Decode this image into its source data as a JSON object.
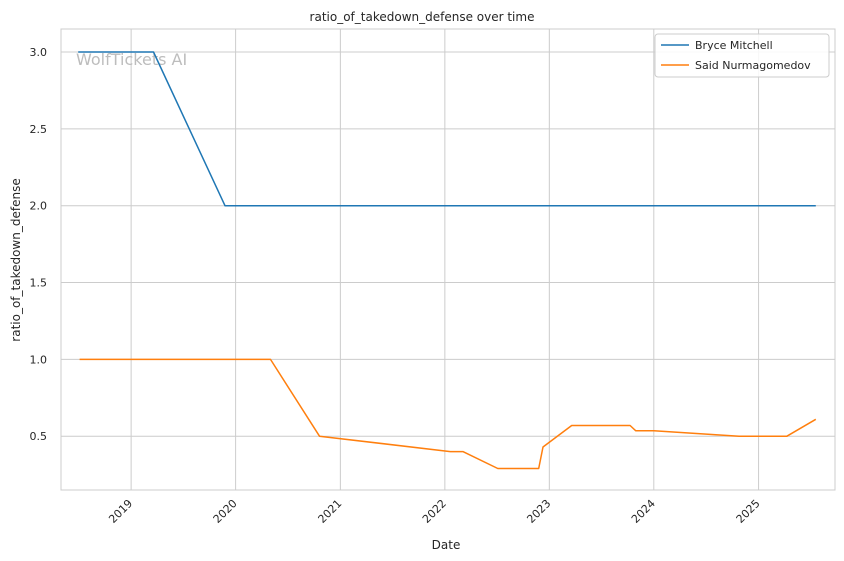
{
  "chart_data": {
    "type": "line",
    "title": "ratio_of_takedown_defense over time",
    "xlabel": "Date",
    "ylabel": "ratio_of_takedown_defense",
    "x_ticks": [
      "2019",
      "2020",
      "2021",
      "2022",
      "2023",
      "2024",
      "2025"
    ],
    "x_tick_dates": [
      "2019-01-01",
      "2020-01-01",
      "2021-01-01",
      "2022-01-01",
      "2023-01-01",
      "2024-01-01",
      "2025-01-01"
    ],
    "y_ticks": [
      "0.5",
      "1.0",
      "1.5",
      "2.0",
      "2.5",
      "3.0"
    ],
    "xlim": [
      "2018-05-01",
      "2025-09-25"
    ],
    "ylim": [
      0.15,
      3.15
    ],
    "grid": true,
    "legend_position": "top-right",
    "watermark": "WolfTickets AI",
    "colors": {
      "bryce": "#1f77b4",
      "said": "#ff7f0e",
      "grid": "#cccccc",
      "frame": "#cccccc",
      "watermark": "#bdbdbd"
    },
    "series": [
      {
        "name": "Bryce Mitchell",
        "color": "#1f77b4",
        "points": [
          [
            "2018-06-30",
            3.0
          ],
          [
            "2019-03-20",
            3.0
          ],
          [
            "2019-11-25",
            2.0
          ],
          [
            "2025-07-20",
            2.0
          ]
        ]
      },
      {
        "name": "Said Nurmagomedov",
        "color": "#ff7f0e",
        "points": [
          [
            "2018-07-05",
            1.0
          ],
          [
            "2020-05-02",
            1.0
          ],
          [
            "2020-10-20",
            0.5
          ],
          [
            "2022-01-20",
            0.4
          ],
          [
            "2022-03-05",
            0.4
          ],
          [
            "2022-07-05",
            0.29
          ],
          [
            "2022-11-25",
            0.29
          ],
          [
            "2022-12-10",
            0.43
          ],
          [
            "2023-03-20",
            0.57
          ],
          [
            "2023-10-10",
            0.57
          ],
          [
            "2023-10-30",
            0.535
          ],
          [
            "2024-01-01",
            0.535
          ],
          [
            "2024-10-25",
            0.5
          ],
          [
            "2025-04-10",
            0.5
          ],
          [
            "2025-07-20",
            0.61
          ]
        ]
      }
    ]
  }
}
